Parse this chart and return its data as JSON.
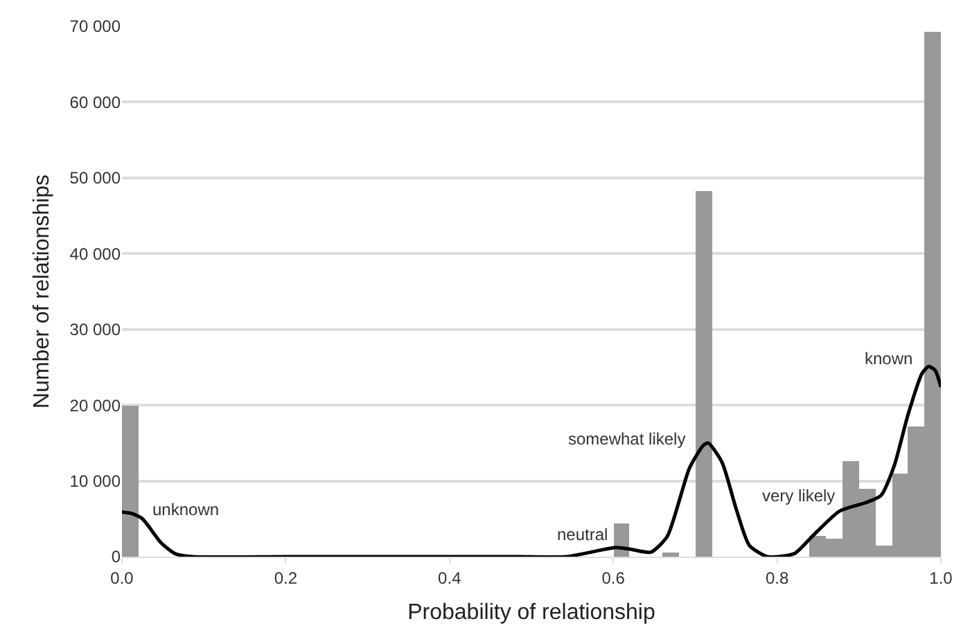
{
  "chart_data": {
    "type": "histogram",
    "xlabel": "Probability of relationship",
    "ylabel": "Number of relationships",
    "bins": [
      0,
      0.02,
      0.04,
      0.06,
      0.08,
      0.1,
      0.12,
      0.14,
      0.16,
      0.18,
      0.2,
      0.22,
      0.24,
      0.26,
      0.28,
      0.3,
      0.32,
      0.34,
      0.36,
      0.38,
      0.4,
      0.42,
      0.44,
      0.46,
      0.48,
      0.5,
      0.52,
      0.54,
      0.56,
      0.58,
      0.6,
      0.62,
      0.64,
      0.66,
      0.68,
      0.7,
      0.72,
      0.74,
      0.76,
      0.78,
      0.8,
      0.82,
      0.84,
      0.86,
      0.88,
      0.9,
      0.92,
      0.94,
      0.96,
      0.98,
      1
    ],
    "values": [
      20000,
      0,
      0,
      0,
      0,
      0,
      0,
      0,
      0,
      0,
      0,
      0,
      0,
      0,
      0,
      0,
      0,
      0,
      0,
      0,
      0,
      0,
      0,
      0,
      0,
      0,
      0,
      0,
      0,
      0,
      4300,
      0,
      0,
      500,
      0,
      48300,
      0,
      0,
      0,
      0,
      0,
      0,
      2700,
      2300,
      12600,
      9000,
      1500,
      11000,
      17100,
      69300
    ],
    "color": "#999999",
    "series": [
      {
        "type": "line",
        "color": "#000000",
        "x": [
          0,
          0.012,
          0.025,
          0.048,
          0.065,
          0.087,
          0.2,
          0.4,
          0.487,
          0.543,
          0.603,
          0.62,
          0.646,
          0.666,
          0.693,
          0.71,
          0.716,
          0.733,
          0.75,
          0.766,
          0.788,
          0.821,
          0.843,
          0.876,
          0.91,
          0.927,
          0.943,
          0.96,
          0.977,
          0.985,
          0.993,
          1
        ],
        "values": [
          5900,
          5700,
          5000,
          1800,
          400,
          0,
          0,
          0,
          0,
          0,
          1200,
          1000,
          600,
          2700,
          11700,
          14700,
          15000,
          12400,
          6300,
          1500,
          0,
          400,
          2700,
          6000,
          7200,
          8100,
          12000,
          18800,
          24200,
          25100,
          24600,
          22400
        ]
      }
    ],
    "xlim": [
      0,
      1
    ],
    "ylim": [
      0,
      70000
    ],
    "xticks": [
      {
        "value": 0,
        "label": "0.0"
      },
      0.2,
      0.4,
      0.6,
      0.8,
      {
        "value": 1,
        "label": "1.0"
      }
    ],
    "yticks": [
      0,
      {
        "value": 10000,
        "label": "10 000"
      },
      {
        "value": 20000,
        "label": "20 000"
      },
      {
        "value": 30000,
        "label": "30 000"
      },
      {
        "value": 40000,
        "label": "40 000"
      },
      {
        "value": 50000,
        "label": "50 000"
      },
      {
        "value": 60000,
        "label": "60 000"
      },
      {
        "value": 70000,
        "label": "70 000"
      }
    ],
    "grid": "y",
    "marker": "none",
    "line_style": "solid",
    "annotations": [
      "unknown",
      "neutral",
      "somewhat likely",
      "very likely",
      "known"
    ]
  }
}
